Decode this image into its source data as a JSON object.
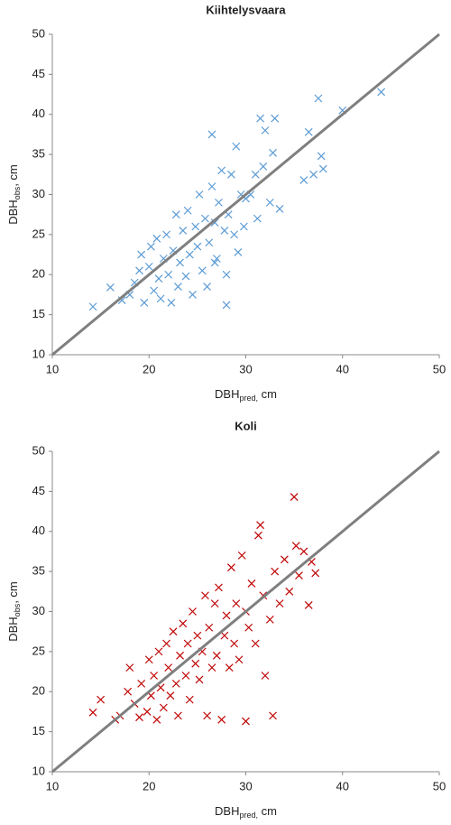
{
  "chart_data": [
    {
      "type": "scatter",
      "title": "Kiihtelysvaara",
      "xlabel": [
        "DBH",
        "pred,",
        " cm"
      ],
      "ylabel": [
        "DBH",
        "obs",
        ", cm"
      ],
      "xlim": [
        10,
        50
      ],
      "ylim": [
        10,
        50
      ],
      "xticks": [
        10,
        20,
        30,
        40,
        50
      ],
      "yticks": [
        10,
        15,
        20,
        25,
        30,
        35,
        40,
        45,
        50
      ],
      "color": "#5b9bd5",
      "identity_line": true,
      "identity_color": "#7f7f7f",
      "x": [
        14.2,
        16,
        17.2,
        18,
        18.5,
        19,
        19.2,
        19.5,
        20,
        20.2,
        20.5,
        20.8,
        21,
        21.2,
        21.5,
        21.8,
        22,
        22.3,
        22.5,
        22.8,
        23,
        23.2,
        23.5,
        23.8,
        24,
        24.2,
        24.5,
        24.8,
        25,
        25.2,
        25.5,
        25.8,
        26,
        26.2,
        26.5,
        26.5,
        26.8,
        27,
        27.2,
        27.5,
        27.8,
        28,
        28.2,
        28.5,
        28.8,
        29,
        29.2,
        29.5,
        29.8,
        30,
        30.5,
        31,
        31.5,
        31.8,
        32,
        32.5,
        33,
        33.5,
        32.8,
        31.2,
        36,
        36.5,
        37,
        37.5,
        37.8,
        38,
        40,
        44,
        28,
        26.8
      ],
      "y": [
        16,
        18.4,
        16.8,
        17.5,
        19,
        20.5,
        22.5,
        16.5,
        21,
        23.5,
        18,
        24.5,
        19.5,
        17,
        22,
        25,
        20,
        16.5,
        23,
        27.5,
        18.5,
        21.5,
        25.5,
        19.8,
        28,
        22.5,
        17.5,
        26,
        23.5,
        30,
        20.5,
        27,
        18.5,
        24,
        37.5,
        31,
        26.5,
        22,
        29,
        33,
        25.5,
        20,
        27.5,
        32.5,
        25,
        36,
        22.8,
        30,
        26,
        29.5,
        30,
        32.5,
        39.5,
        33.5,
        38,
        29,
        39.5,
        28.2,
        35.2,
        27,
        31.8,
        37.8,
        32.5,
        42,
        34.8,
        33.2,
        40.5,
        42.8,
        16.2,
        21.5
      ]
    },
    {
      "type": "scatter",
      "title": "Koli",
      "xlabel": [
        "DBH",
        "pred,",
        " cm"
      ],
      "ylabel": [
        "DBH",
        "obs",
        ", cm"
      ],
      "xlim": [
        10,
        50
      ],
      "ylim": [
        10,
        50
      ],
      "xticks": [
        10,
        20,
        30,
        40,
        50
      ],
      "yticks": [
        10,
        15,
        20,
        25,
        30,
        35,
        40,
        45,
        50
      ],
      "color": "#c00000",
      "identity_line": true,
      "identity_color": "#7f7f7f",
      "x": [
        14.2,
        15,
        16.5,
        17,
        17.8,
        18,
        18.5,
        19,
        19.2,
        19.8,
        20,
        20.2,
        20.5,
        20.8,
        21,
        21.2,
        21.5,
        21.8,
        22,
        22.2,
        22.5,
        22.8,
        23,
        23.2,
        23.5,
        23.8,
        24,
        24.2,
        24.5,
        24.8,
        25,
        25.2,
        25.5,
        25.8,
        26,
        26.2,
        26.5,
        26.8,
        27,
        27.2,
        27.5,
        27.8,
        28,
        28.3,
        28.5,
        28.8,
        29,
        29.3,
        29.6,
        30,
        30,
        30.3,
        30.6,
        31,
        31.3,
        31.5,
        31.8,
        32,
        32.5,
        32.8,
        33,
        33.5,
        34,
        34.5,
        35,
        35.2,
        35.5,
        36,
        36.5,
        36.8,
        37.2
      ],
      "y": [
        17.4,
        19,
        16.5,
        17,
        20,
        23,
        18.5,
        16.8,
        21,
        17.5,
        24,
        19.5,
        22,
        16.5,
        25,
        20.5,
        18,
        26,
        23,
        19.5,
        27.5,
        21,
        17,
        24.5,
        28.5,
        22,
        26,
        19,
        30,
        23.5,
        27,
        21.5,
        25,
        32,
        17,
        28,
        23,
        31,
        24.5,
        33,
        16.5,
        27,
        29.5,
        23,
        35.5,
        26,
        31,
        24,
        37,
        30,
        16.3,
        28,
        33.5,
        26,
        39.5,
        40.8,
        32,
        22,
        29,
        17,
        35,
        31,
        36.5,
        32.5,
        44.3,
        38.2,
        34.5,
        37.5,
        30.8,
        36.2,
        34.8
      ]
    }
  ]
}
